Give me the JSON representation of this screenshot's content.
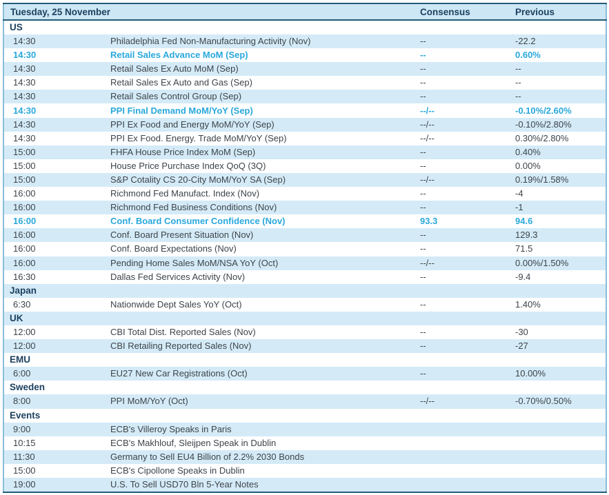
{
  "colors": {
    "header_bg": "#cde7f4",
    "stripe_bg": "#d4ebf7",
    "navy_text": "#1b3f5f",
    "row_text": "#3d4349",
    "highlight_accent": "#29a8dc",
    "frame_border": "#245a78",
    "side_border": "#8abcd9"
  },
  "table": {
    "title": "Tuesday, 25 November",
    "columns": {
      "consensus": "Consensus",
      "previous": "Previous"
    },
    "rows": [
      {
        "type": "section",
        "label": "US"
      },
      {
        "type": "event",
        "time": "14:30",
        "name": "Philadelphia Fed Non-Manufacturing Activity (Nov)",
        "consensus": "--",
        "previous": "-22.2",
        "highlight": false
      },
      {
        "type": "event",
        "time": "14:30",
        "name": "Retail Sales Advance MoM (Sep)",
        "consensus": "--",
        "previous": "0.60%",
        "highlight": true
      },
      {
        "type": "event",
        "time": "14:30",
        "name": "Retail Sales Ex Auto MoM (Sep)",
        "consensus": "--",
        "previous": "--",
        "highlight": false
      },
      {
        "type": "event",
        "time": "14:30",
        "name": "Retail Sales Ex Auto and Gas (Sep)",
        "consensus": "--",
        "previous": "--",
        "highlight": false
      },
      {
        "type": "event",
        "time": "14:30",
        "name": "Retail Sales Control Group (Sep)",
        "consensus": "--",
        "previous": "--",
        "highlight": false
      },
      {
        "type": "event",
        "time": "14:30",
        "name": "PPI Final Demand MoM/YoY (Sep)",
        "consensus": "--/--",
        "previous": "-0.10%/2.60%",
        "highlight": true
      },
      {
        "type": "event",
        "time": "14:30",
        "name": "PPI Ex Food and Energy MoM/YoY (Sep)",
        "consensus": "--/--",
        "previous": "-0.10%/2.80%",
        "highlight": false
      },
      {
        "type": "event",
        "time": "14:30",
        "name": "PPI Ex Food. Energy. Trade MoM/YoY (Sep)",
        "consensus": "--/--",
        "previous": "0.30%/2.80%",
        "highlight": false
      },
      {
        "type": "event",
        "time": "15:00",
        "name": "FHFA House Price Index MoM (Sep)",
        "consensus": "--",
        "previous": "0.40%",
        "highlight": false
      },
      {
        "type": "event",
        "time": "15:00",
        "name": "House Price Purchase Index QoQ (3Q)",
        "consensus": "--",
        "previous": "0.00%",
        "highlight": false
      },
      {
        "type": "event",
        "time": "15:00",
        "name": "S&P Cotality CS 20-City MoM/YoY SA (Sep)",
        "consensus": "--/--",
        "previous": "0.19%/1.58%",
        "highlight": false
      },
      {
        "type": "event",
        "time": "16:00",
        "name": "Richmond Fed Manufact. Index (Nov)",
        "consensus": "--",
        "previous": "-4",
        "highlight": false
      },
      {
        "type": "event",
        "time": "16:00",
        "name": "Richmond Fed Business Conditions (Nov)",
        "consensus": "--",
        "previous": "-1",
        "highlight": false
      },
      {
        "type": "event",
        "time": "16:00",
        "name": "Conf. Board Consumer Confidence (Nov)",
        "consensus": "93.3",
        "previous": "94.6",
        "highlight": true
      },
      {
        "type": "event",
        "time": "16:00",
        "name": "Conf. Board Present Situation (Nov)",
        "consensus": "--",
        "previous": "129.3",
        "highlight": false
      },
      {
        "type": "event",
        "time": "16:00",
        "name": "Conf. Board Expectations (Nov)",
        "consensus": "--",
        "previous": "71.5",
        "highlight": false
      },
      {
        "type": "event",
        "time": "16:00",
        "name": "Pending Home Sales MoM/NSA YoY (Oct)",
        "consensus": "--/--",
        "previous": "0.00%/1.50%",
        "highlight": false
      },
      {
        "type": "event",
        "time": "16:30",
        "name": "Dallas Fed Services Activity (Nov)",
        "consensus": "--",
        "previous": "-9.4",
        "highlight": false
      },
      {
        "type": "section",
        "label": "Japan"
      },
      {
        "type": "event",
        "time": "6:30",
        "name": "Nationwide Dept Sales YoY (Oct)",
        "consensus": "--",
        "previous": "1.40%",
        "highlight": false
      },
      {
        "type": "section",
        "label": "UK"
      },
      {
        "type": "event",
        "time": "12:00",
        "name": "CBI Total Dist. Reported Sales (Nov)",
        "consensus": "--",
        "previous": "-30",
        "highlight": false
      },
      {
        "type": "event",
        "time": "12:00",
        "name": "CBI Retailing Reported Sales (Nov)",
        "consensus": "--",
        "previous": "-27",
        "highlight": false
      },
      {
        "type": "section",
        "label": "EMU"
      },
      {
        "type": "event",
        "time": "6:00",
        "name": "EU27 New Car Registrations (Oct)",
        "consensus": "--",
        "previous": "10.00%",
        "highlight": false
      },
      {
        "type": "section",
        "label": "Sweden"
      },
      {
        "type": "event",
        "time": "8:00",
        "name": "PPI MoM/YoY (Oct)",
        "consensus": "--/--",
        "previous": "-0.70%/0.50%",
        "highlight": false
      },
      {
        "type": "section",
        "label": "Events"
      },
      {
        "type": "event",
        "time": "9:00",
        "name": "ECB's Villeroy Speaks in Paris",
        "consensus": "",
        "previous": "",
        "highlight": false
      },
      {
        "type": "event",
        "time": "10:15",
        "name": "ECB's Makhlouf, Sleijpen Speak in Dublin",
        "consensus": "",
        "previous": "",
        "highlight": false
      },
      {
        "type": "event",
        "time": "11:30",
        "name": "Germany to Sell EU4 Billion of 2.2% 2030 Bonds",
        "consensus": "",
        "previous": "",
        "highlight": false
      },
      {
        "type": "event",
        "time": "15:00",
        "name": "ECB's Cipollone Speaks in Dublin",
        "consensus": "",
        "previous": "",
        "highlight": false
      },
      {
        "type": "event",
        "time": "19:00",
        "name": "U.S. To Sell USD70 Bln 5-Year Notes",
        "consensus": "",
        "previous": "",
        "highlight": false
      }
    ]
  }
}
